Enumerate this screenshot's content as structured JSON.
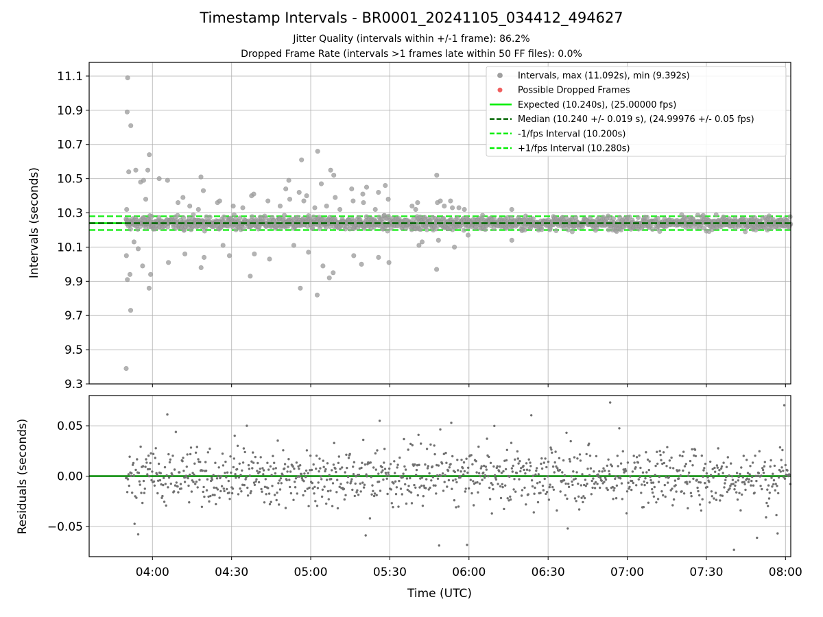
{
  "header": {
    "title": "Timestamp Intervals - BR0001_20241105_034412_494627",
    "subtitle_1": "Jitter Quality (intervals within +/-1 frame): 86.2%",
    "subtitle_2": "Dropped Frame Rate (intervals >1 frames late within 50 FF files): 0.0%"
  },
  "chart_data": [
    {
      "type": "scatter",
      "panel": "intervals",
      "ylabel": "Intervals (seconds)",
      "xlabel": "",
      "xlim": [
        "03:36",
        "08:02"
      ],
      "ylim": [
        9.3,
        11.18
      ],
      "yticks": [
        "9.3",
        "9.5",
        "9.7",
        "9.9",
        "10.1",
        "10.3",
        "10.5",
        "10.7",
        "10.9",
        "11.1"
      ],
      "grid": true,
      "legend_position": "top-right",
      "colors": {
        "intervals": "#a0a0a0",
        "dropped": "#f06060",
        "expected": "#00ee00",
        "median": "#006400",
        "bounds": "#22ee22"
      },
      "legend": [
        {
          "label": "Intervals, max (11.092s), min (9.392s)",
          "style": "dot-gray"
        },
        {
          "label": "Possible Dropped Frames",
          "style": "dot-red"
        },
        {
          "label": "Expected (10.240s), (25.00000 fps)",
          "style": "line-solid-green"
        },
        {
          "label": "Median (10.240 +/- 0.019 s), (24.99976 +/- 0.05 fps)",
          "style": "line-dashed-darkgreen"
        },
        {
          "label": "-1/fps Interval (10.200s)",
          "style": "line-dashed-green"
        },
        {
          "label": "+1/fps Interval (10.280s)",
          "style": "line-dashed-green"
        }
      ],
      "reference_lines": {
        "expected": 10.24,
        "median": 10.24,
        "lower": 10.2,
        "upper": 10.28
      },
      "outliers": [
        {
          "t": "03:50",
          "v": 11.09
        },
        {
          "t": "03:50",
          "v": 10.89
        },
        {
          "t": "03:51",
          "v": 10.81
        },
        {
          "t": "03:51",
          "v": 10.54
        },
        {
          "t": "03:50",
          "v": 10.32
        },
        {
          "t": "03:50",
          "v": 10.05
        },
        {
          "t": "03:50",
          "v": 9.91
        },
        {
          "t": "03:51",
          "v": 9.94
        },
        {
          "t": "03:51",
          "v": 9.73
        },
        {
          "t": "03:50",
          "v": 9.39
        },
        {
          "t": "03:53",
          "v": 10.55
        },
        {
          "t": "03:55",
          "v": 10.48
        },
        {
          "t": "03:56",
          "v": 10.49
        },
        {
          "t": "03:57",
          "v": 10.38
        },
        {
          "t": "03:58",
          "v": 10.64
        },
        {
          "t": "03:58",
          "v": 10.55
        },
        {
          "t": "03:59",
          "v": 9.94
        },
        {
          "t": "03:58",
          "v": 9.86
        },
        {
          "t": "03:56",
          "v": 9.99
        },
        {
          "t": "03:54",
          "v": 10.09
        },
        {
          "t": "03:53",
          "v": 10.13
        },
        {
          "t": "04:02",
          "v": 10.5
        },
        {
          "t": "04:05",
          "v": 10.49
        },
        {
          "t": "04:06",
          "v": 10.01
        },
        {
          "t": "04:09",
          "v": 10.36
        },
        {
          "t": "04:11",
          "v": 10.39
        },
        {
          "t": "04:12",
          "v": 10.06
        },
        {
          "t": "04:14",
          "v": 10.34
        },
        {
          "t": "04:17",
          "v": 10.32
        },
        {
          "t": "04:18",
          "v": 10.51
        },
        {
          "t": "04:19",
          "v": 10.43
        },
        {
          "t": "04:18",
          "v": 9.98
        },
        {
          "t": "04:19",
          "v": 10.04
        },
        {
          "t": "04:24",
          "v": 10.36
        },
        {
          "t": "04:25",
          "v": 10.37
        },
        {
          "t": "04:26",
          "v": 10.11
        },
        {
          "t": "04:29",
          "v": 10.05
        },
        {
          "t": "04:30",
          "v": 10.34
        },
        {
          "t": "04:34",
          "v": 10.33
        },
        {
          "t": "04:37",
          "v": 10.4
        },
        {
          "t": "04:38",
          "v": 10.41
        },
        {
          "t": "04:37",
          "v": 9.93
        },
        {
          "t": "04:38",
          "v": 10.06
        },
        {
          "t": "04:43",
          "v": 10.37
        },
        {
          "t": "04:44",
          "v": 10.03
        },
        {
          "t": "04:48",
          "v": 10.34
        },
        {
          "t": "04:50",
          "v": 10.44
        },
        {
          "t": "04:51",
          "v": 10.49
        },
        {
          "t": "04:52",
          "v": 10.38
        },
        {
          "t": "04:53",
          "v": 10.11
        },
        {
          "t": "04:55",
          "v": 10.42
        },
        {
          "t": "04:56",
          "v": 10.61
        },
        {
          "t": "04:56",
          "v": 9.86
        },
        {
          "t": "04:57",
          "v": 10.37
        },
        {
          "t": "04:58",
          "v": 10.4
        },
        {
          "t": "04:59",
          "v": 10.07
        },
        {
          "t": "05:01",
          "v": 10.33
        },
        {
          "t": "05:02",
          "v": 10.66
        },
        {
          "t": "05:02",
          "v": 9.82
        },
        {
          "t": "05:04",
          "v": 10.47
        },
        {
          "t": "05:04",
          "v": 9.99
        },
        {
          "t": "05:06",
          "v": 10.34
        },
        {
          "t": "05:07",
          "v": 10.55
        },
        {
          "t": "05:08",
          "v": 10.52
        },
        {
          "t": "05:07",
          "v": 9.92
        },
        {
          "t": "05:08",
          "v": 9.95
        },
        {
          "t": "05:09",
          "v": 10.39
        },
        {
          "t": "05:11",
          "v": 10.32
        },
        {
          "t": "05:15",
          "v": 10.44
        },
        {
          "t": "05:16",
          "v": 10.37
        },
        {
          "t": "05:16",
          "v": 10.05
        },
        {
          "t": "05:19",
          "v": 10.41
        },
        {
          "t": "05:20",
          "v": 10.36
        },
        {
          "t": "05:19",
          "v": 10.0
        },
        {
          "t": "05:21",
          "v": 10.45
        },
        {
          "t": "05:24",
          "v": 10.32
        },
        {
          "t": "05:25",
          "v": 10.42
        },
        {
          "t": "05:25",
          "v": 10.04
        },
        {
          "t": "05:28",
          "v": 10.46
        },
        {
          "t": "05:29",
          "v": 10.38
        },
        {
          "t": "05:29",
          "v": 10.01
        },
        {
          "t": "05:38",
          "v": 10.34
        },
        {
          "t": "05:39",
          "v": 10.32
        },
        {
          "t": "05:40",
          "v": 10.36
        },
        {
          "t": "05:41",
          "v": 10.11
        },
        {
          "t": "05:42",
          "v": 10.13
        },
        {
          "t": "05:47",
          "v": 10.52
        },
        {
          "t": "05:47",
          "v": 9.97
        },
        {
          "t": "05:48",
          "v": 10.36
        },
        {
          "t": "05:49",
          "v": 10.37
        },
        {
          "t": "05:50",
          "v": 10.34
        },
        {
          "t": "05:48",
          "v": 10.14
        },
        {
          "t": "05:53",
          "v": 10.37
        },
        {
          "t": "05:53",
          "v": 10.33
        },
        {
          "t": "05:54",
          "v": 10.1
        },
        {
          "t": "05:56",
          "v": 10.33
        },
        {
          "t": "05:58",
          "v": 10.32
        },
        {
          "t": "05:59",
          "v": 10.17
        },
        {
          "t": "06:16",
          "v": 10.32
        },
        {
          "t": "06:16",
          "v": 10.14
        }
      ]
    },
    {
      "type": "scatter",
      "panel": "residuals",
      "ylabel": "Residuals (seconds)",
      "xlabel": "Time (UTC)",
      "xlim": [
        "03:36",
        "08:02"
      ],
      "ylim": [
        -0.08,
        0.08
      ],
      "yticks": [
        "−0.05",
        "0.00",
        "0.05"
      ],
      "xticks": [
        "04:00",
        "04:30",
        "05:00",
        "05:30",
        "06:00",
        "06:30",
        "07:00",
        "07:30",
        "08:00"
      ],
      "grid": true,
      "colors": {
        "points": "#707070",
        "zero_line": "#008800"
      }
    }
  ]
}
